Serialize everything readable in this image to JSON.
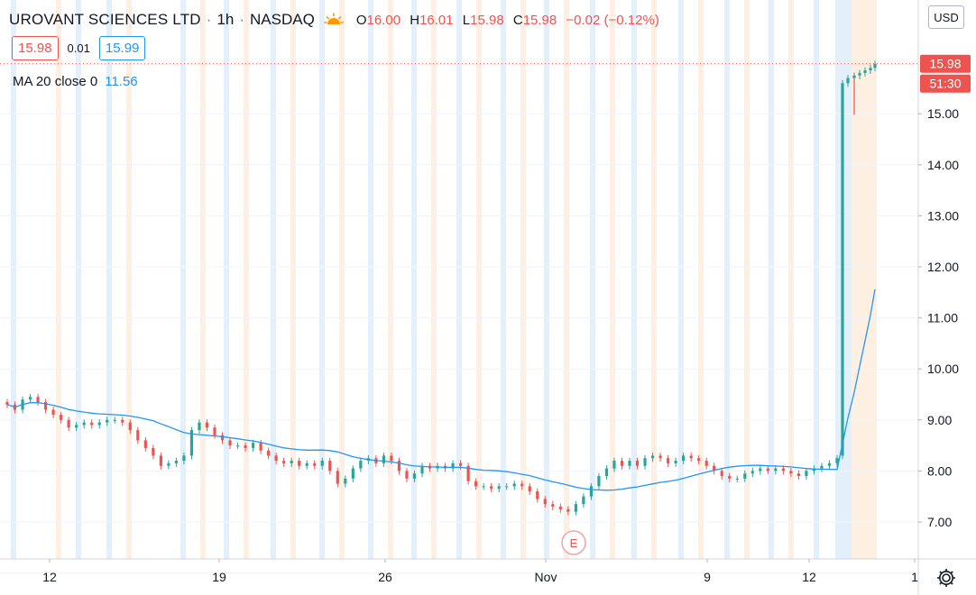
{
  "header": {
    "symbol": "UROVANT SCIENCES LTD",
    "interval": "1h",
    "exchange": "NASDAQ",
    "separator": "·",
    "open_label": "O",
    "open": "16.00",
    "high_label": "H",
    "high": "16.01",
    "low_label": "L",
    "low": "15.98",
    "close_label": "C",
    "close": "15.98",
    "change": "−0.02 (−0.12%)",
    "session_icon": "sun-icon"
  },
  "quote": {
    "bid": "15.98",
    "spread": "0.01",
    "ask": "15.99"
  },
  "indicator": {
    "label": "MA 20 close 0",
    "value": "11.56"
  },
  "axis": {
    "currency": "USD",
    "y_ticks": [
      "15.00",
      "14.00",
      "13.00",
      "12.00",
      "11.00",
      "10.00",
      "9.00",
      "8.00",
      "7.00"
    ],
    "x_ticks": [
      "12",
      "19",
      "26",
      "Nov",
      "9",
      "12",
      "1"
    ],
    "price_tag": "15.98",
    "countdown_tag": "51:30",
    "earnings_marker": "E"
  },
  "colors": {
    "up": "#26a69a",
    "down": "#ef5350",
    "ma": "#2196f3",
    "premarket_band": "#e3f0fb",
    "afterhours_band": "#fdf0e2",
    "grid": "#f0f3fa"
  },
  "chart_data": {
    "type": "candlestick",
    "title": "UROVANT SCIENCES LTD · 1h · NASDAQ",
    "ylim": [
      6.3,
      16.3
    ],
    "y_ticks": [
      7,
      8,
      9,
      10,
      11,
      12,
      13,
      14,
      15
    ],
    "x_labels": [
      "12",
      "19",
      "26",
      "Nov",
      "9",
      "12",
      "1"
    ],
    "close_series": [
      9.3,
      9.2,
      9.4,
      9.45,
      9.35,
      9.2,
      9.1,
      9.0,
      8.85,
      8.9,
      8.95,
      8.9,
      8.95,
      9.0,
      9.0,
      8.95,
      8.8,
      8.6,
      8.45,
      8.3,
      8.1,
      8.15,
      8.2,
      8.3,
      8.8,
      8.95,
      8.85,
      8.7,
      8.6,
      8.5,
      8.5,
      8.45,
      8.55,
      8.4,
      8.3,
      8.2,
      8.15,
      8.2,
      8.1,
      8.15,
      8.1,
      8.2,
      8.0,
      7.75,
      7.85,
      8.05,
      8.2,
      8.25,
      8.15,
      8.3,
      8.2,
      8.0,
      7.85,
      7.95,
      8.1,
      8.05,
      8.1,
      8.05,
      8.15,
      8.1,
      7.8,
      7.7,
      7.7,
      7.65,
      7.7,
      7.7,
      7.75,
      7.7,
      7.6,
      7.45,
      7.35,
      7.3,
      7.25,
      7.2,
      7.35,
      7.5,
      7.7,
      7.9,
      8.05,
      8.2,
      8.1,
      8.2,
      8.1,
      8.25,
      8.3,
      8.25,
      8.15,
      8.2,
      8.3,
      8.25,
      8.2,
      8.1,
      8.0,
      7.9,
      7.85,
      7.85,
      7.95,
      8.0,
      8.05,
      8.0,
      8.05,
      8.0,
      7.95,
      7.9,
      8.0,
      8.05,
      8.1,
      8.15,
      8.25,
      15.6,
      15.7,
      15.75,
      15.8,
      15.85,
      15.9,
      15.98
    ],
    "ma20": {
      "name": "MA 20 close 0",
      "last": 11.56
    },
    "last_price": 15.98
  }
}
